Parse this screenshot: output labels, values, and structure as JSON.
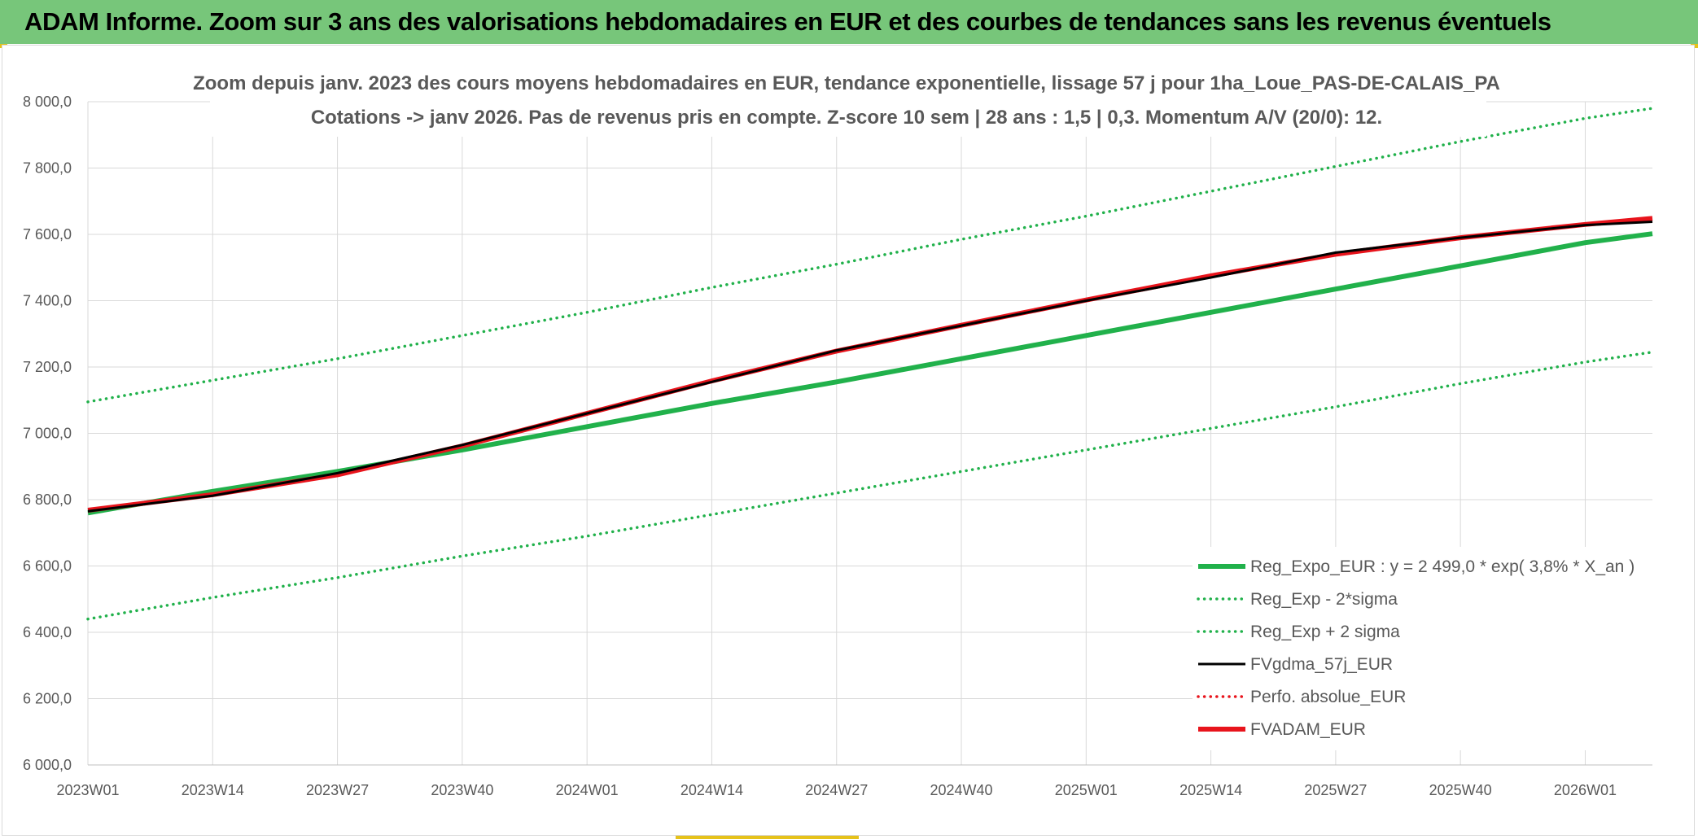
{
  "banner": {
    "text": "ADAM Informe. Zoom sur 3 ans des valorisations hebdomadaires en EUR et des courbes de tendances sans les revenus éventuels",
    "background": "#77c67a"
  },
  "chart_data": {
    "type": "line",
    "title_line1": "Zoom depuis janv. 2023 des cours moyens hebdomadaires en EUR, tendance exponentielle, lissage 57 j pour 1ha_Loue_PAS-DE-CALAIS_PA",
    "title_line2": "Cotations -> janv 2026. Pas de revenus pris en compte. Z-score 10 sem | 28 ans : 1,5 | 0,3. Momentum A/V (20/0): 12.",
    "xlabel": "",
    "ylabel": "",
    "ylim": [
      6000,
      8000
    ],
    "y_ticks": [
      {
        "value": 8000,
        "label": "8 000,0"
      },
      {
        "value": 7800,
        "label": "7 800,0"
      },
      {
        "value": 7600,
        "label": "7 600,0"
      },
      {
        "value": 7400,
        "label": "7 400,0"
      },
      {
        "value": 7200,
        "label": "7 200,0"
      },
      {
        "value": 7000,
        "label": "7 000,0"
      },
      {
        "value": 6800,
        "label": "6 800,0"
      },
      {
        "value": 6600,
        "label": "6 600,0"
      },
      {
        "value": 6400,
        "label": "6 400,0"
      },
      {
        "value": 6200,
        "label": "6 200,0"
      },
      {
        "value": 6000,
        "label": "6 000,0"
      }
    ],
    "x_unit": "week index since 2023W01",
    "xlim": [
      0,
      163
    ],
    "x_ticks": [
      {
        "x": 0,
        "label": "2023W01"
      },
      {
        "x": 13,
        "label": "2023W14"
      },
      {
        "x": 26,
        "label": "2023W27"
      },
      {
        "x": 39,
        "label": "2023W40"
      },
      {
        "x": 52,
        "label": "2024W01"
      },
      {
        "x": 65,
        "label": "2024W14"
      },
      {
        "x": 78,
        "label": "2024W27"
      },
      {
        "x": 91,
        "label": "2024W40"
      },
      {
        "x": 104,
        "label": "2025W01"
      },
      {
        "x": 117,
        "label": "2025W14"
      },
      {
        "x": 130,
        "label": "2025W27"
      },
      {
        "x": 143,
        "label": "2025W40"
      },
      {
        "x": 156,
        "label": "2026W01"
      }
    ],
    "grid": true,
    "legend_position": "bottom-right",
    "series": [
      {
        "name": "Reg_Expo_EUR : y = 2 499,0 * exp( 3,8% *  X_an )",
        "color": "#21b14b",
        "style": "solid",
        "weight": "thick",
        "x": [
          0,
          13,
          26,
          39,
          52,
          65,
          78,
          91,
          104,
          117,
          130,
          143,
          156,
          163
        ],
        "y": [
          6760,
          6825,
          6885,
          6950,
          7020,
          7090,
          7155,
          7225,
          7295,
          7365,
          7435,
          7505,
          7575,
          7602
        ]
      },
      {
        "name": "Reg_Exp - 2*sigma",
        "color": "#21b14b",
        "style": "dotted",
        "weight": "normal",
        "x": [
          0,
          13,
          26,
          39,
          52,
          65,
          78,
          91,
          104,
          117,
          130,
          143,
          156,
          163
        ],
        "y": [
          6440,
          6505,
          6565,
          6630,
          6690,
          6755,
          6820,
          6885,
          6950,
          7015,
          7080,
          7150,
          7215,
          7245
        ]
      },
      {
        "name": "Reg_Exp + 2 sigma",
        "color": "#21b14b",
        "style": "dotted",
        "weight": "normal",
        "x": [
          0,
          13,
          26,
          39,
          52,
          65,
          78,
          91,
          104,
          117,
          130,
          143,
          156,
          163
        ],
        "y": [
          7095,
          7160,
          7225,
          7295,
          7365,
          7440,
          7510,
          7585,
          7655,
          7730,
          7805,
          7880,
          7950,
          7980
        ]
      },
      {
        "name": "FVgdma_57j_EUR",
        "color": "#000000",
        "style": "solid",
        "weight": "normal",
        "x": [
          0,
          13,
          26,
          39,
          52,
          65,
          78,
          91,
          104,
          117,
          130,
          143,
          156,
          163
        ],
        "y": [
          6765,
          6812,
          6880,
          6965,
          7060,
          7155,
          7250,
          7325,
          7400,
          7470,
          7545,
          7590,
          7628,
          7638
        ]
      },
      {
        "name": "Perfo. absolue_EUR",
        "color": "#e8141c",
        "style": "dotted",
        "weight": "normal",
        "x": [],
        "y": []
      },
      {
        "name": "FVADAM_EUR",
        "color": "#e8141c",
        "style": "solid",
        "weight": "thick",
        "x": [
          0,
          13,
          26,
          39,
          52,
          65,
          78,
          91,
          104,
          117,
          130,
          143,
          156,
          163
        ],
        "y": [
          6768,
          6815,
          6875,
          6962,
          7060,
          7158,
          7248,
          7326,
          7402,
          7475,
          7540,
          7590,
          7630,
          7648
        ]
      }
    ]
  }
}
